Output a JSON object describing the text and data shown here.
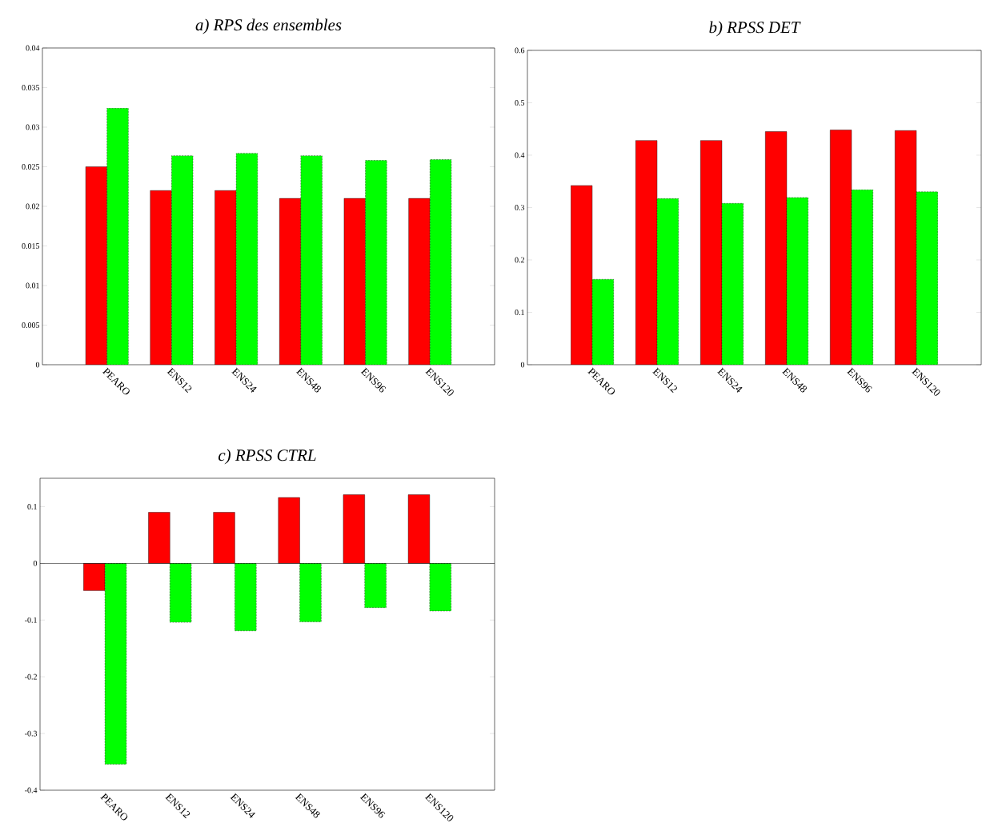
{
  "chart_data": [
    {
      "type": "bar",
      "title": "a) RPS des ensembles",
      "categories": [
        "PEARO",
        "ENS12",
        "ENS24",
        "ENS48",
        "ENS96",
        "ENS120"
      ],
      "series": [
        {
          "color": "#ff0000",
          "values": [
            0.025,
            0.022,
            0.022,
            0.021,
            0.021,
            0.021
          ]
        },
        {
          "color": "#00ff00",
          "line_style": "dashed",
          "values": [
            0.0324,
            0.0264,
            0.0267,
            0.0264,
            0.0258,
            0.0259
          ]
        }
      ],
      "ylim": [
        0,
        0.04
      ],
      "yticks": [
        0,
        0.005,
        0.01,
        0.015,
        0.02,
        0.025,
        0.03,
        0.035,
        0.04
      ]
    },
    {
      "type": "bar",
      "title": "b) RPSS DET",
      "categories": [
        "PEARO",
        "ENS12",
        "ENS24",
        "ENS48",
        "ENS96",
        "ENS120"
      ],
      "series": [
        {
          "color": "#ff0000",
          "values": [
            0.342,
            0.428,
            0.428,
            0.445,
            0.448,
            0.447
          ]
        },
        {
          "color": "#00ff00",
          "line_style": "dashed",
          "values": [
            0.163,
            0.317,
            0.308,
            0.319,
            0.334,
            0.33
          ]
        }
      ],
      "ylim": [
        0,
        0.6
      ],
      "yticks": [
        0,
        0.1,
        0.2,
        0.3,
        0.4,
        0.5,
        0.6
      ]
    },
    {
      "type": "bar",
      "title": "c) RPSS CTRL",
      "categories": [
        "PEARO",
        "ENS12",
        "ENS24",
        "ENS48",
        "ENS96",
        "ENS120"
      ],
      "series": [
        {
          "color": "#ff0000",
          "values": [
            -0.048,
            0.09,
            0.09,
            0.116,
            0.121,
            0.121
          ]
        },
        {
          "color": "#00ff00",
          "line_style": "dashed",
          "values": [
            -0.354,
            -0.104,
            -0.119,
            -0.103,
            -0.078,
            -0.084
          ]
        }
      ],
      "ylim": [
        -0.4,
        0.15
      ],
      "yticks": [
        -0.4,
        -0.3,
        -0.2,
        -0.1,
        0,
        0.1
      ]
    }
  ]
}
